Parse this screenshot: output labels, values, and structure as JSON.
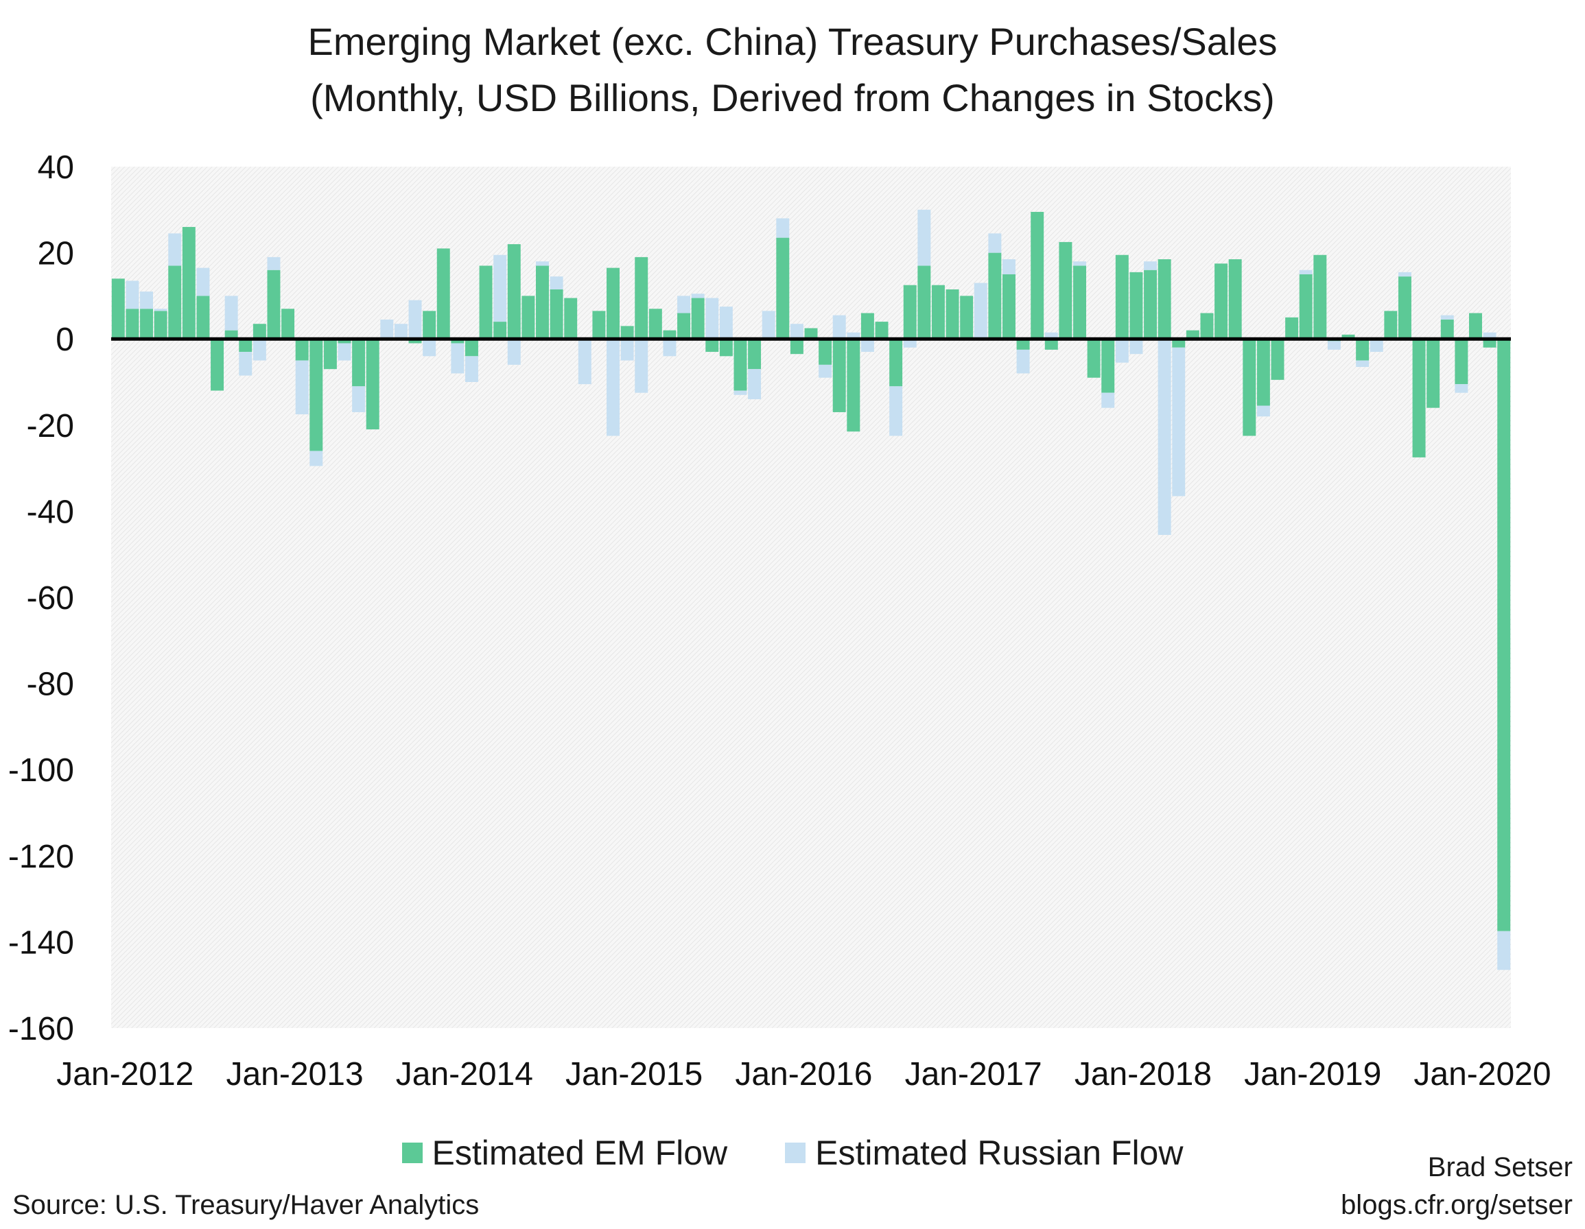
{
  "chart_data": {
    "type": "bar",
    "stacked": true,
    "title": "Emerging Market (exc. China) Treasury Purchases/Sales",
    "subtitle": "(Monthly, USD Billions, Derived from Changes in Stocks)",
    "ylim": [
      -160,
      40
    ],
    "yticks": [
      "40",
      "20",
      "0",
      "-20",
      "-40",
      "-60",
      "-80",
      "-100",
      "-120",
      "-140",
      "-160"
    ],
    "xtick_labels": [
      "Jan-2012",
      "Jan-2013",
      "Jan-2014",
      "Jan-2015",
      "Jan-2016",
      "Jan-2017",
      "Jan-2018",
      "Jan-2019",
      "Jan-2020"
    ],
    "x_start": "Jan-2012",
    "frequency": "monthly",
    "grid": false,
    "legend_position": "bottom",
    "series": [
      {
        "name": "Estimated EM Flow",
        "color": "#5cc996",
        "values": [
          14,
          7,
          7,
          6.5,
          17,
          26,
          10,
          -12,
          2,
          -3,
          3.5,
          16,
          7,
          -5,
          -26,
          -7,
          -1,
          -11,
          -21,
          0,
          0,
          -1,
          6.5,
          21,
          -1,
          -4,
          17,
          4,
          22,
          10,
          17,
          11.5,
          9.5,
          0,
          6.5,
          16.5,
          3,
          19,
          7,
          2,
          6,
          9.5,
          -3,
          -4,
          -12,
          -7,
          0,
          23.5,
          -3.5,
          2.5,
          -6,
          -17,
          -21.5,
          6,
          4,
          -11,
          12.5,
          17,
          12.5,
          11.5,
          10,
          0,
          20,
          15,
          -2.5,
          29.5,
          -2.5,
          22.5,
          17,
          -9,
          -12.5,
          19.5,
          15.5,
          16,
          18.5,
          -2,
          2,
          6,
          17.5,
          18.5,
          -22.5,
          -15.5,
          -9.5,
          5,
          15,
          19.5,
          -0.5,
          1,
          -5,
          0,
          6.5,
          14.5,
          -27.5,
          -16,
          4.5,
          -10.5,
          6,
          -2,
          -137.5
        ]
      },
      {
        "name": "Estimated Russian Flow",
        "color": "#c6dff2",
        "values": [
          0,
          6.5,
          4,
          0.5,
          7.5,
          0,
          6.5,
          0,
          8,
          -5.5,
          -5,
          3,
          0,
          -12.5,
          -3.5,
          0,
          -4,
          -6,
          0,
          4.5,
          3.5,
          9,
          -4,
          0,
          -7,
          -6,
          0,
          15.5,
          -6,
          0,
          1,
          3,
          0,
          -10.5,
          0,
          -22.5,
          -5,
          -12.5,
          0,
          -4,
          4,
          1,
          9.5,
          7.5,
          -1,
          -7,
          6.5,
          4.5,
          3.5,
          0,
          -3,
          5.5,
          1.5,
          -3,
          0,
          -11.5,
          -2,
          13,
          0,
          0,
          0,
          13,
          4.5,
          3.5,
          -5.5,
          0,
          1.5,
          0,
          1,
          0,
          -3.5,
          -5.5,
          -3.5,
          2,
          -45.5,
          -34.5,
          0,
          0,
          0,
          0,
          0,
          -2.5,
          0,
          0,
          1,
          0,
          -2,
          0,
          -1.5,
          -3,
          0,
          1,
          0,
          0,
          1,
          -2,
          0,
          1.5,
          -9
        ]
      }
    ]
  },
  "legend": {
    "em_label": "Estimated EM Flow",
    "russian_label": "Estimated Russian Flow",
    "em_color": "#5cc996",
    "russian_color": "#c6dff2"
  },
  "footer": {
    "source": "Source: U.S. Treasury/Haver Analytics",
    "author": "Brad Setser",
    "website": "blogs.cfr.org/setser"
  }
}
